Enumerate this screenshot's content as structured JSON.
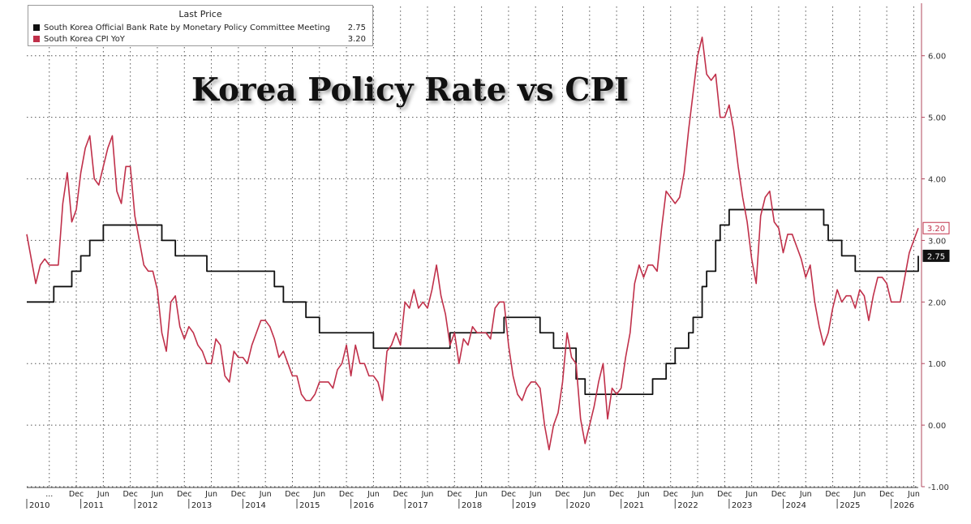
{
  "overlay_title": "Korea Policy Rate vs CPI",
  "legend": {
    "header": "Last Price",
    "items": [
      {
        "name": "South Korea Official Bank Rate by Monetary Policy Committee Meeting",
        "value": "2.75",
        "color": "#111111"
      },
      {
        "name": "South Korea CPI YoY",
        "value": "3.20",
        "color": "#c0304a"
      }
    ]
  },
  "chart_data": {
    "type": "line",
    "x_range": [
      "2010-01",
      "2026-07"
    ],
    "ylim": [
      -1.0,
      6.8
    ],
    "y_ticks": [
      -1.0,
      0.0,
      1.0,
      2.0,
      3.0,
      4.0,
      5.0,
      6.0
    ],
    "y_tick_labels": [
      "-1.00",
      "0.00",
      "1.00",
      "2.00",
      "3.00",
      "4.00",
      "5.00",
      "6.00"
    ],
    "y_axis_side": "right",
    "grid": true,
    "legend_placement": "top-left",
    "x_month_ticks": [
      {
        "date": "2010-06",
        "label": "..."
      },
      {
        "date": "2010-12",
        "label": "Dec"
      },
      {
        "date": "2011-06",
        "label": "Jun"
      },
      {
        "date": "2011-12",
        "label": "Dec"
      },
      {
        "date": "2012-06",
        "label": "Jun"
      },
      {
        "date": "2012-12",
        "label": "Dec"
      },
      {
        "date": "2013-06",
        "label": "Jun"
      },
      {
        "date": "2013-12",
        "label": "Dec"
      },
      {
        "date": "2014-06",
        "label": "Jun"
      },
      {
        "date": "2014-12",
        "label": "Dec"
      },
      {
        "date": "2015-06",
        "label": "Jun"
      },
      {
        "date": "2015-12",
        "label": "Dec"
      },
      {
        "date": "2016-06",
        "label": "Jun"
      },
      {
        "date": "2016-12",
        "label": "Dec"
      },
      {
        "date": "2017-06",
        "label": "Jun"
      },
      {
        "date": "2017-12",
        "label": "Dec"
      },
      {
        "date": "2018-06",
        "label": "Jun"
      },
      {
        "date": "2018-12",
        "label": "Dec"
      },
      {
        "date": "2019-06",
        "label": "Jun"
      },
      {
        "date": "2019-12",
        "label": "Dec"
      },
      {
        "date": "2020-06",
        "label": "Jun"
      },
      {
        "date": "2020-12",
        "label": "Dec"
      },
      {
        "date": "2021-06",
        "label": "Jun"
      },
      {
        "date": "2021-12",
        "label": "Dec"
      },
      {
        "date": "2022-06",
        "label": "Jun"
      },
      {
        "date": "2022-12",
        "label": "Dec"
      },
      {
        "date": "2023-06",
        "label": "Jun"
      },
      {
        "date": "2023-12",
        "label": "Dec"
      },
      {
        "date": "2024-06",
        "label": "Jun"
      },
      {
        "date": "2024-12",
        "label": "Dec"
      },
      {
        "date": "2025-06",
        "label": "Jun"
      },
      {
        "date": "2025-12",
        "label": "Dec"
      },
      {
        "date": "2026-06",
        "label": "Jun"
      }
    ],
    "x_year_labels": [
      "2010",
      "2011",
      "2012",
      "2013",
      "2014",
      "2015",
      "2016",
      "2017",
      "2018",
      "2019",
      "2020",
      "2021",
      "2022",
      "2023",
      "2024",
      "2025",
      "2026"
    ],
    "end_labels": [
      {
        "series": "South Korea CPI YoY",
        "text": "3.20",
        "value": 3.2,
        "color": "#c0304a"
      },
      {
        "series": "South Korea Official Bank Rate by Monetary Policy Committee Meeting",
        "text": "2.75",
        "value": 2.75,
        "color": "#111111"
      }
    ],
    "series": [
      {
        "name": "South Korea Official Bank Rate by Monetary Policy Committee Meeting",
        "color": "#111111",
        "points": [
          [
            "2010-01",
            2.0
          ],
          [
            "2010-07",
            2.25
          ],
          [
            "2010-11",
            2.5
          ],
          [
            "2011-01",
            2.75
          ],
          [
            "2011-03",
            3.0
          ],
          [
            "2011-06",
            3.25
          ],
          [
            "2012-07",
            3.0
          ],
          [
            "2012-10",
            2.75
          ],
          [
            "2013-05",
            2.5
          ],
          [
            "2014-08",
            2.25
          ],
          [
            "2014-10",
            2.0
          ],
          [
            "2015-03",
            1.75
          ],
          [
            "2015-06",
            1.5
          ],
          [
            "2016-06",
            1.25
          ],
          [
            "2017-11",
            1.5
          ],
          [
            "2018-11",
            1.75
          ],
          [
            "2019-07",
            1.5
          ],
          [
            "2019-10",
            1.25
          ],
          [
            "2020-03",
            0.75
          ],
          [
            "2020-05",
            0.5
          ],
          [
            "2021-08",
            0.75
          ],
          [
            "2021-11",
            1.0
          ],
          [
            "2022-01",
            1.25
          ],
          [
            "2022-04",
            1.5
          ],
          [
            "2022-05",
            1.75
          ],
          [
            "2022-07",
            2.25
          ],
          [
            "2022-08",
            2.5
          ],
          [
            "2022-10",
            3.0
          ],
          [
            "2022-11",
            3.25
          ],
          [
            "2023-01",
            3.5
          ],
          [
            "2024-10",
            3.25
          ],
          [
            "2024-11",
            3.0
          ],
          [
            "2025-02",
            2.75
          ],
          [
            "2025-05",
            2.5
          ],
          [
            "2026-06",
            2.5
          ],
          [
            "2026-07",
            2.75
          ]
        ]
      },
      {
        "name": "South Korea CPI YoY",
        "color": "#c0304a",
        "points": [
          [
            "2010-01",
            3.1
          ],
          [
            "2010-02",
            2.7
          ],
          [
            "2010-03",
            2.3
          ],
          [
            "2010-04",
            2.6
          ],
          [
            "2010-05",
            2.7
          ],
          [
            "2010-06",
            2.6
          ],
          [
            "2010-07",
            2.6
          ],
          [
            "2010-08",
            2.6
          ],
          [
            "2010-09",
            3.6
          ],
          [
            "2010-10",
            4.1
          ],
          [
            "2010-11",
            3.3
          ],
          [
            "2010-12",
            3.5
          ],
          [
            "2011-01",
            4.1
          ],
          [
            "2011-02",
            4.5
          ],
          [
            "2011-03",
            4.7
          ],
          [
            "2011-04",
            4.0
          ],
          [
            "2011-05",
            3.9
          ],
          [
            "2011-06",
            4.2
          ],
          [
            "2011-07",
            4.5
          ],
          [
            "2011-08",
            4.7
          ],
          [
            "2011-09",
            3.8
          ],
          [
            "2011-10",
            3.6
          ],
          [
            "2011-11",
            4.2
          ],
          [
            "2011-12",
            4.2
          ],
          [
            "2012-01",
            3.4
          ],
          [
            "2012-02",
            3.0
          ],
          [
            "2012-03",
            2.6
          ],
          [
            "2012-04",
            2.5
          ],
          [
            "2012-05",
            2.5
          ],
          [
            "2012-06",
            2.2
          ],
          [
            "2012-07",
            1.5
          ],
          [
            "2012-08",
            1.2
          ],
          [
            "2012-09",
            2.0
          ],
          [
            "2012-10",
            2.1
          ],
          [
            "2012-11",
            1.6
          ],
          [
            "2012-12",
            1.4
          ],
          [
            "2013-01",
            1.6
          ],
          [
            "2013-02",
            1.5
          ],
          [
            "2013-03",
            1.3
          ],
          [
            "2013-04",
            1.2
          ],
          [
            "2013-05",
            1.0
          ],
          [
            "2013-06",
            1.0
          ],
          [
            "2013-07",
            1.4
          ],
          [
            "2013-08",
            1.3
          ],
          [
            "2013-09",
            0.8
          ],
          [
            "2013-10",
            0.7
          ],
          [
            "2013-11",
            1.2
          ],
          [
            "2013-12",
            1.1
          ],
          [
            "2014-01",
            1.1
          ],
          [
            "2014-02",
            1.0
          ],
          [
            "2014-03",
            1.3
          ],
          [
            "2014-04",
            1.5
          ],
          [
            "2014-05",
            1.7
          ],
          [
            "2014-06",
            1.7
          ],
          [
            "2014-07",
            1.6
          ],
          [
            "2014-08",
            1.4
          ],
          [
            "2014-09",
            1.1
          ],
          [
            "2014-10",
            1.2
          ],
          [
            "2014-11",
            1.0
          ],
          [
            "2014-12",
            0.8
          ],
          [
            "2015-01",
            0.8
          ],
          [
            "2015-02",
            0.5
          ],
          [
            "2015-03",
            0.4
          ],
          [
            "2015-04",
            0.4
          ],
          [
            "2015-05",
            0.5
          ],
          [
            "2015-06",
            0.7
          ],
          [
            "2015-07",
            0.7
          ],
          [
            "2015-08",
            0.7
          ],
          [
            "2015-09",
            0.6
          ],
          [
            "2015-10",
            0.9
          ],
          [
            "2015-11",
            1.0
          ],
          [
            "2015-12",
            1.3
          ],
          [
            "2016-01",
            0.8
          ],
          [
            "2016-02",
            1.3
          ],
          [
            "2016-03",
            1.0
          ],
          [
            "2016-04",
            1.0
          ],
          [
            "2016-05",
            0.8
          ],
          [
            "2016-06",
            0.8
          ],
          [
            "2016-07",
            0.7
          ],
          [
            "2016-08",
            0.4
          ],
          [
            "2016-09",
            1.2
          ],
          [
            "2016-10",
            1.3
          ],
          [
            "2016-11",
            1.5
          ],
          [
            "2016-12",
            1.3
          ],
          [
            "2017-01",
            2.0
          ],
          [
            "2017-02",
            1.9
          ],
          [
            "2017-03",
            2.2
          ],
          [
            "2017-04",
            1.9
          ],
          [
            "2017-05",
            2.0
          ],
          [
            "2017-06",
            1.9
          ],
          [
            "2017-07",
            2.2
          ],
          [
            "2017-08",
            2.6
          ],
          [
            "2017-09",
            2.1
          ],
          [
            "2017-10",
            1.8
          ],
          [
            "2017-11",
            1.3
          ],
          [
            "2017-12",
            1.5
          ],
          [
            "2018-01",
            1.0
          ],
          [
            "2018-02",
            1.4
          ],
          [
            "2018-03",
            1.3
          ],
          [
            "2018-04",
            1.6
          ],
          [
            "2018-05",
            1.5
          ],
          [
            "2018-06",
            1.5
          ],
          [
            "2018-07",
            1.5
          ],
          [
            "2018-08",
            1.4
          ],
          [
            "2018-09",
            1.9
          ],
          [
            "2018-10",
            2.0
          ],
          [
            "2018-11",
            2.0
          ],
          [
            "2018-12",
            1.3
          ],
          [
            "2019-01",
            0.8
          ],
          [
            "2019-02",
            0.5
          ],
          [
            "2019-03",
            0.4
          ],
          [
            "2019-04",
            0.6
          ],
          [
            "2019-05",
            0.7
          ],
          [
            "2019-06",
            0.7
          ],
          [
            "2019-07",
            0.6
          ],
          [
            "2019-08",
            0.0
          ],
          [
            "2019-09",
            -0.4
          ],
          [
            "2019-10",
            0.0
          ],
          [
            "2019-11",
            0.2
          ],
          [
            "2019-12",
            0.7
          ],
          [
            "2020-01",
            1.5
          ],
          [
            "2020-02",
            1.1
          ],
          [
            "2020-03",
            1.0
          ],
          [
            "2020-04",
            0.1
          ],
          [
            "2020-05",
            -0.3
          ],
          [
            "2020-06",
            0.0
          ],
          [
            "2020-07",
            0.3
          ],
          [
            "2020-08",
            0.7
          ],
          [
            "2020-09",
            1.0
          ],
          [
            "2020-10",
            0.1
          ],
          [
            "2020-11",
            0.6
          ],
          [
            "2020-12",
            0.5
          ],
          [
            "2021-01",
            0.6
          ],
          [
            "2021-02",
            1.1
          ],
          [
            "2021-03",
            1.5
          ],
          [
            "2021-04",
            2.3
          ],
          [
            "2021-05",
            2.6
          ],
          [
            "2021-06",
            2.4
          ],
          [
            "2021-07",
            2.6
          ],
          [
            "2021-08",
            2.6
          ],
          [
            "2021-09",
            2.5
          ],
          [
            "2021-10",
            3.2
          ],
          [
            "2021-11",
            3.8
          ],
          [
            "2021-12",
            3.7
          ],
          [
            "2022-01",
            3.6
          ],
          [
            "2022-02",
            3.7
          ],
          [
            "2022-03",
            4.1
          ],
          [
            "2022-04",
            4.8
          ],
          [
            "2022-05",
            5.4
          ],
          [
            "2022-06",
            6.0
          ],
          [
            "2022-07",
            6.3
          ],
          [
            "2022-08",
            5.7
          ],
          [
            "2022-09",
            5.6
          ],
          [
            "2022-10",
            5.7
          ],
          [
            "2022-11",
            5.0
          ],
          [
            "2022-12",
            5.0
          ],
          [
            "2023-01",
            5.2
          ],
          [
            "2023-02",
            4.8
          ],
          [
            "2023-03",
            4.2
          ],
          [
            "2023-04",
            3.7
          ],
          [
            "2023-05",
            3.3
          ],
          [
            "2023-06",
            2.7
          ],
          [
            "2023-07",
            2.3
          ],
          [
            "2023-08",
            3.4
          ],
          [
            "2023-09",
            3.7
          ],
          [
            "2023-10",
            3.8
          ],
          [
            "2023-11",
            3.3
          ],
          [
            "2023-12",
            3.2
          ],
          [
            "2024-01",
            2.8
          ],
          [
            "2024-02",
            3.1
          ],
          [
            "2024-03",
            3.1
          ],
          [
            "2024-04",
            2.9
          ],
          [
            "2024-05",
            2.7
          ],
          [
            "2024-06",
            2.4
          ],
          [
            "2024-07",
            2.6
          ],
          [
            "2024-08",
            2.0
          ],
          [
            "2024-09",
            1.6
          ],
          [
            "2024-10",
            1.3
          ],
          [
            "2024-11",
            1.5
          ],
          [
            "2024-12",
            1.9
          ],
          [
            "2025-01",
            2.2
          ],
          [
            "2025-02",
            2.0
          ],
          [
            "2025-03",
            2.1
          ],
          [
            "2025-04",
            2.1
          ],
          [
            "2025-05",
            1.9
          ],
          [
            "2025-06",
            2.2
          ],
          [
            "2025-07",
            2.1
          ],
          [
            "2025-08",
            1.7
          ],
          [
            "2025-09",
            2.1
          ],
          [
            "2025-10",
            2.4
          ],
          [
            "2025-11",
            2.4
          ],
          [
            "2025-12",
            2.3
          ],
          [
            "2026-01",
            2.0
          ],
          [
            "2026-02",
            2.0
          ],
          [
            "2026-03",
            2.0
          ],
          [
            "2026-04",
            2.4
          ],
          [
            "2026-05",
            2.8
          ],
          [
            "2026-06",
            3.0
          ],
          [
            "2026-07",
            3.2
          ]
        ]
      }
    ]
  }
}
